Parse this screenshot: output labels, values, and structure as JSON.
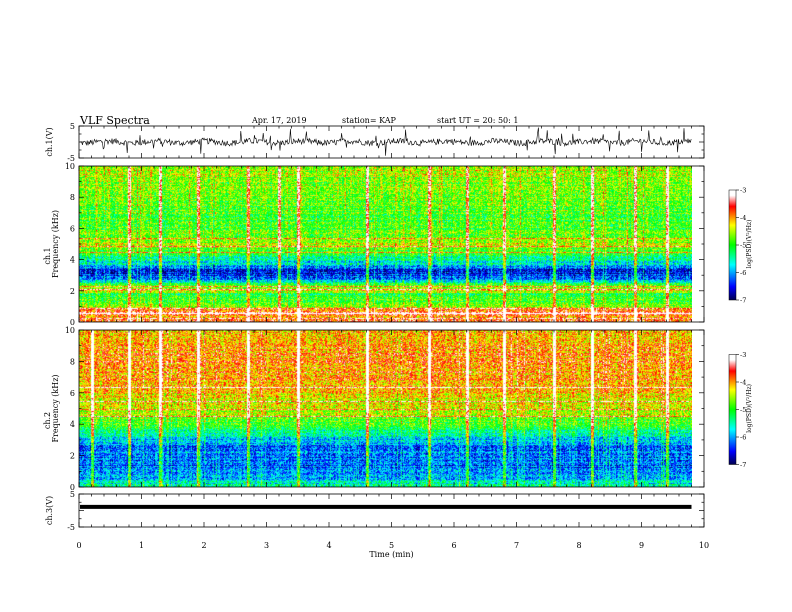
{
  "header": {
    "title": "VLF Spectra",
    "date": "Apr. 17, 2019",
    "station": "station= KAP",
    "start": "start UT = 20: 50: 1"
  },
  "chart_data": [
    {
      "type": "line",
      "panel": "ch1-waveform",
      "ylabel": "ch.1(V)",
      "ylim": [
        -5,
        5
      ],
      "yticks": [
        "5",
        "-5"
      ],
      "xlim": [
        0,
        10
      ],
      "x_end_min": 9.8,
      "mean": 0,
      "amplitude": 1.2
    },
    {
      "type": "heatmap",
      "panel": "ch1-spectrogram",
      "ylabel_channel": "ch.1",
      "ylabel": "Frequency (kHz)",
      "ylim": [
        0,
        10
      ],
      "yticks": [
        "0",
        "2",
        "4",
        "6",
        "8",
        "10"
      ],
      "xlim": [
        0,
        10
      ],
      "x_end_min": 9.8,
      "colorbar": {
        "label": "log(PSD)(V²/Hz)",
        "range": [
          -7,
          -3
        ],
        "ticks": [
          "-3",
          "-4",
          "-5",
          "-6",
          "-7"
        ]
      },
      "profile_khz_logpsd": [
        [
          0,
          -3.6
        ],
        [
          0.3,
          -4.2
        ],
        [
          0.6,
          -3.5
        ],
        [
          1.0,
          -4.6
        ],
        [
          1.5,
          -5.0
        ],
        [
          1.8,
          -5.2
        ],
        [
          2.0,
          -4.3
        ],
        [
          2.3,
          -4.6
        ],
        [
          2.6,
          -5.6
        ],
        [
          3.0,
          -6.5
        ],
        [
          3.4,
          -6.4
        ],
        [
          3.7,
          -5.8
        ],
        [
          4.1,
          -5.4
        ],
        [
          4.5,
          -5.0
        ],
        [
          5.0,
          -4.5
        ],
        [
          5.5,
          -4.8
        ],
        [
          6.2,
          -5.0
        ],
        [
          7.0,
          -4.9
        ],
        [
          8.0,
          -4.7
        ],
        [
          9.0,
          -4.6
        ],
        [
          10.0,
          -4.5
        ]
      ],
      "lines_khz": [
        0.25,
        0.6,
        0.9,
        2.1,
        2.3,
        4.5,
        4.9,
        5.4
      ],
      "bursts_min": [
        0.8,
        1.3,
        1.9,
        2.7,
        3.2,
        3.5,
        4.6,
        5.6,
        6.2,
        6.8,
        7.6,
        8.2,
        8.9,
        9.4
      ]
    },
    {
      "type": "heatmap",
      "panel": "ch2-spectrogram",
      "ylabel_channel": "ch.2",
      "ylabel": "Frequency (kHz)",
      "ylim": [
        0,
        10
      ],
      "yticks": [
        "0",
        "2",
        "4",
        "6",
        "8",
        "10"
      ],
      "xlim": [
        0,
        10
      ],
      "x_end_min": 9.8,
      "colorbar": {
        "label": "log(PSD)(V²/Hz)",
        "range": [
          -7,
          -3
        ],
        "ticks": [
          "-3",
          "-4",
          "-5",
          "-6",
          "-7"
        ]
      },
      "profile_khz_logpsd": [
        [
          0,
          -5.4
        ],
        [
          0.5,
          -5.8
        ],
        [
          1.0,
          -6.0
        ],
        [
          1.5,
          -6.3
        ],
        [
          2.0,
          -6.1
        ],
        [
          2.5,
          -6.2
        ],
        [
          3.0,
          -5.9
        ],
        [
          3.5,
          -5.4
        ],
        [
          4.0,
          -5.0
        ],
        [
          4.5,
          -4.6
        ],
        [
          5.0,
          -4.4
        ],
        [
          6.0,
          -4.2
        ],
        [
          7.0,
          -4.0
        ],
        [
          8.0,
          -3.9
        ],
        [
          9.0,
          -4.0
        ],
        [
          10.0,
          -4.1
        ]
      ],
      "lines_khz": [
        4.5,
        5.0,
        5.5,
        6.4
      ],
      "bursts_min": [
        0.2,
        0.8,
        1.3,
        1.9,
        2.7,
        3.5,
        4.6,
        5.6,
        6.2,
        6.8,
        7.6,
        8.2,
        8.9,
        9.4
      ]
    },
    {
      "type": "line",
      "panel": "ch3-waveform",
      "ylabel": "ch.3(V)",
      "ylim": [
        -5,
        5
      ],
      "yticks": [
        "5",
        "-5"
      ],
      "xlim": [
        0,
        10
      ],
      "x_end_min": 9.8,
      "mean": 1.1,
      "amplitude": 0.1
    }
  ],
  "xaxis": {
    "label": "Time (min)",
    "ticks": [
      "0",
      "1",
      "2",
      "3",
      "4",
      "5",
      "6",
      "7",
      "8",
      "9",
      "10"
    ]
  }
}
